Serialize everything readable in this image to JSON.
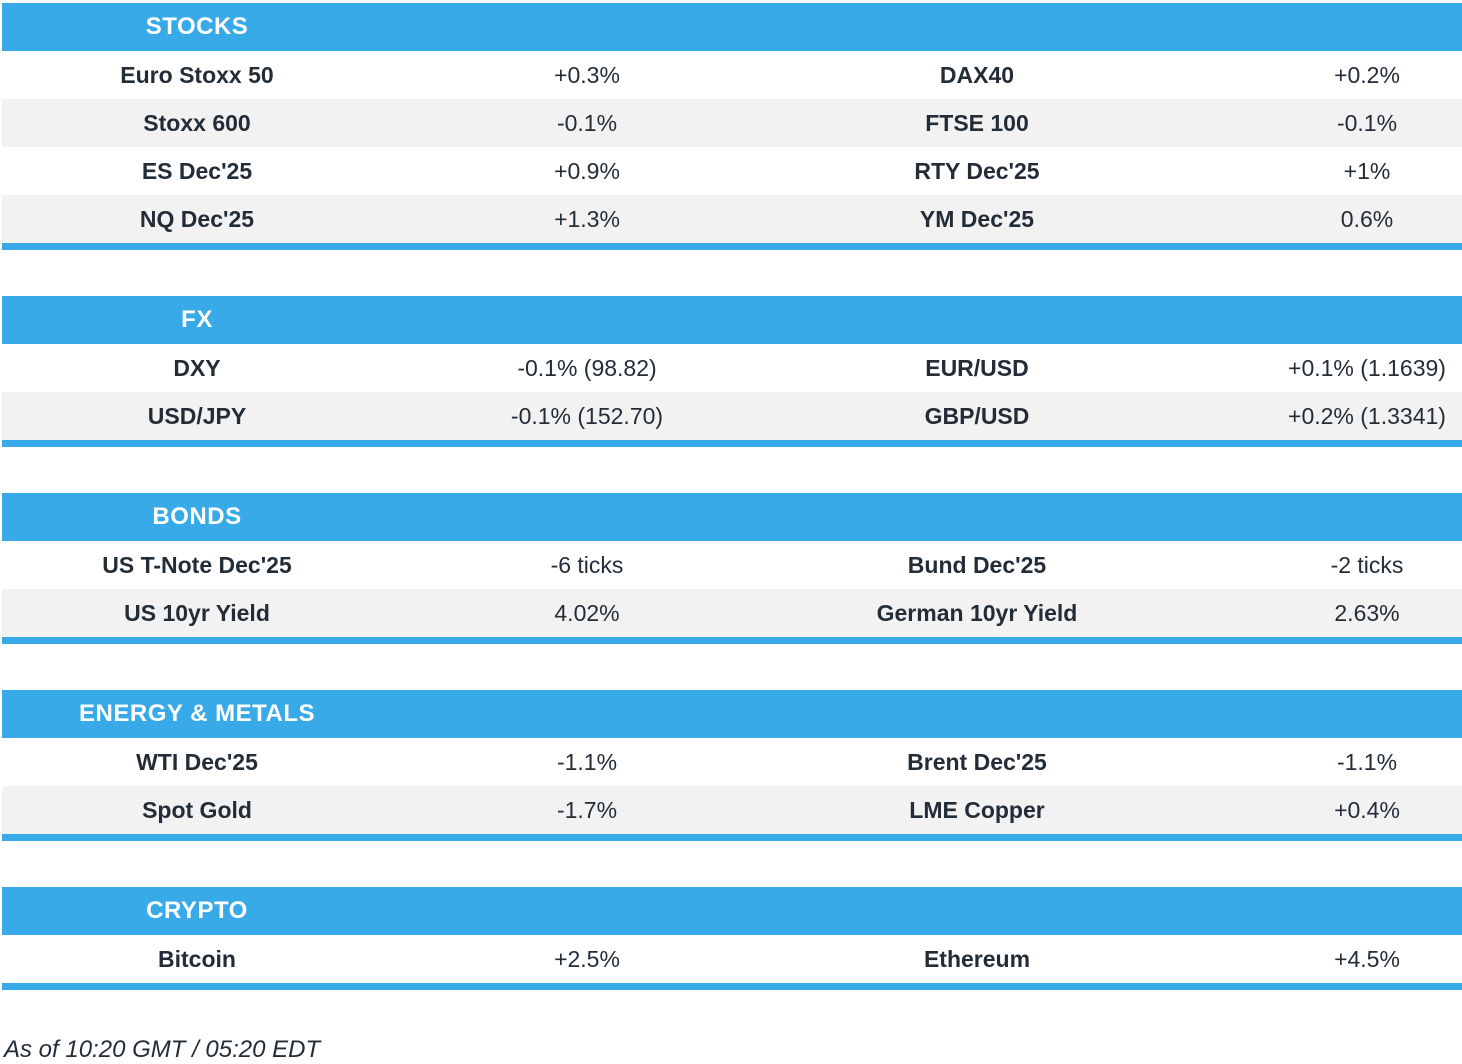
{
  "theme": {
    "accent": "#37aae7",
    "row_alt": "#f2f2f2",
    "text": "#232d38",
    "header_text": "#ffffff"
  },
  "chart_data": [
    {
      "type": "table",
      "title": "STOCKS",
      "rows": [
        [
          "Euro Stoxx 50",
          "+0.3%",
          "DAX40",
          "+0.2%"
        ],
        [
          "Stoxx 600",
          "-0.1%",
          "FTSE 100",
          "-0.1%"
        ],
        [
          "ES Dec'25",
          "+0.9%",
          "RTY Dec'25",
          "+1%"
        ],
        [
          "NQ Dec'25",
          "+1.3%",
          "YM Dec'25",
          "0.6%"
        ]
      ]
    },
    {
      "type": "table",
      "title": "FX",
      "rows": [
        [
          "DXY",
          "-0.1% (98.82)",
          "EUR/USD",
          "+0.1% (1.1639)"
        ],
        [
          "USD/JPY",
          "-0.1% (152.70)",
          "GBP/USD",
          "+0.2% (1.3341)"
        ]
      ]
    },
    {
      "type": "table",
      "title": "BONDS",
      "rows": [
        [
          "US T-Note Dec'25",
          "-6 ticks",
          "Bund Dec'25",
          "-2 ticks"
        ],
        [
          "US 10yr Yield",
          "4.02%",
          "German 10yr Yield",
          "2.63%"
        ]
      ]
    },
    {
      "type": "table",
      "title": "ENERGY & METALS",
      "rows": [
        [
          "WTI Dec'25",
          "-1.1%",
          "Brent Dec'25",
          "-1.1%"
        ],
        [
          "Spot Gold",
          "-1.7%",
          "LME Copper",
          "+0.4%"
        ]
      ]
    },
    {
      "type": "table",
      "title": "CRYPTO",
      "rows": [
        [
          "Bitcoin",
          "+2.5%",
          "Ethereum",
          "+4.5%"
        ]
      ]
    }
  ],
  "footer": {
    "note": "As of 10:20 GMT / 05:20 EDT"
  }
}
